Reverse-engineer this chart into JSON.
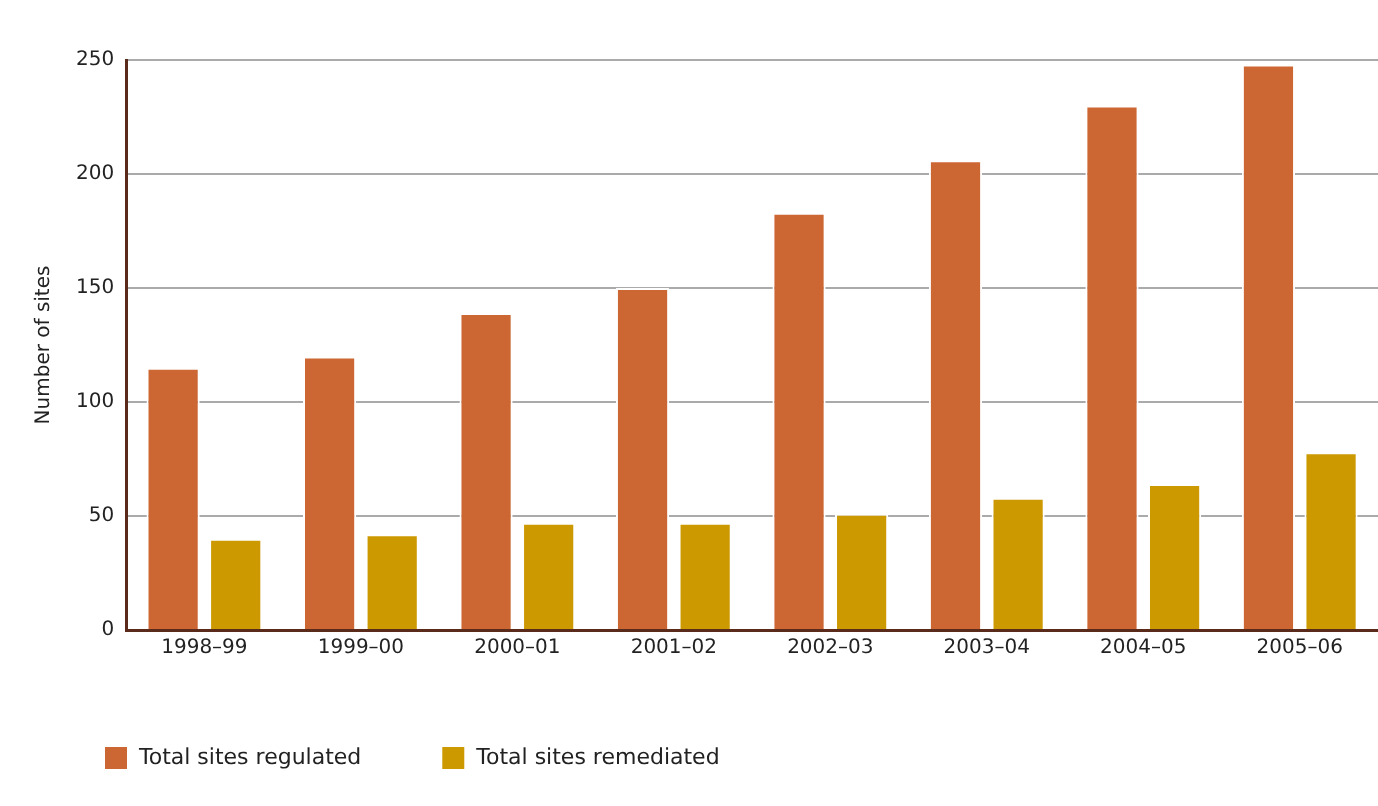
{
  "chart_data": {
    "type": "bar",
    "ylabel": "Number of sites",
    "categories": [
      "1998–99",
      "1999–00",
      "2000–01",
      "2001–02",
      "2002–03",
      "2003–04",
      "2004–05",
      "2005–06"
    ],
    "series": [
      {
        "name": "Total sites regulated",
        "color": "#cc6633",
        "values": [
          115,
          120,
          139,
          150,
          183,
          206,
          230,
          248
        ]
      },
      {
        "name": "Total sites remediated",
        "color": "#cc9900",
        "values": [
          40,
          42,
          47,
          47,
          51,
          58,
          64,
          78
        ]
      }
    ],
    "ylim": [
      0,
      250
    ],
    "yticks": [
      0,
      50,
      100,
      150,
      200,
      250
    ],
    "grid": "y",
    "legend": "bottom left"
  }
}
